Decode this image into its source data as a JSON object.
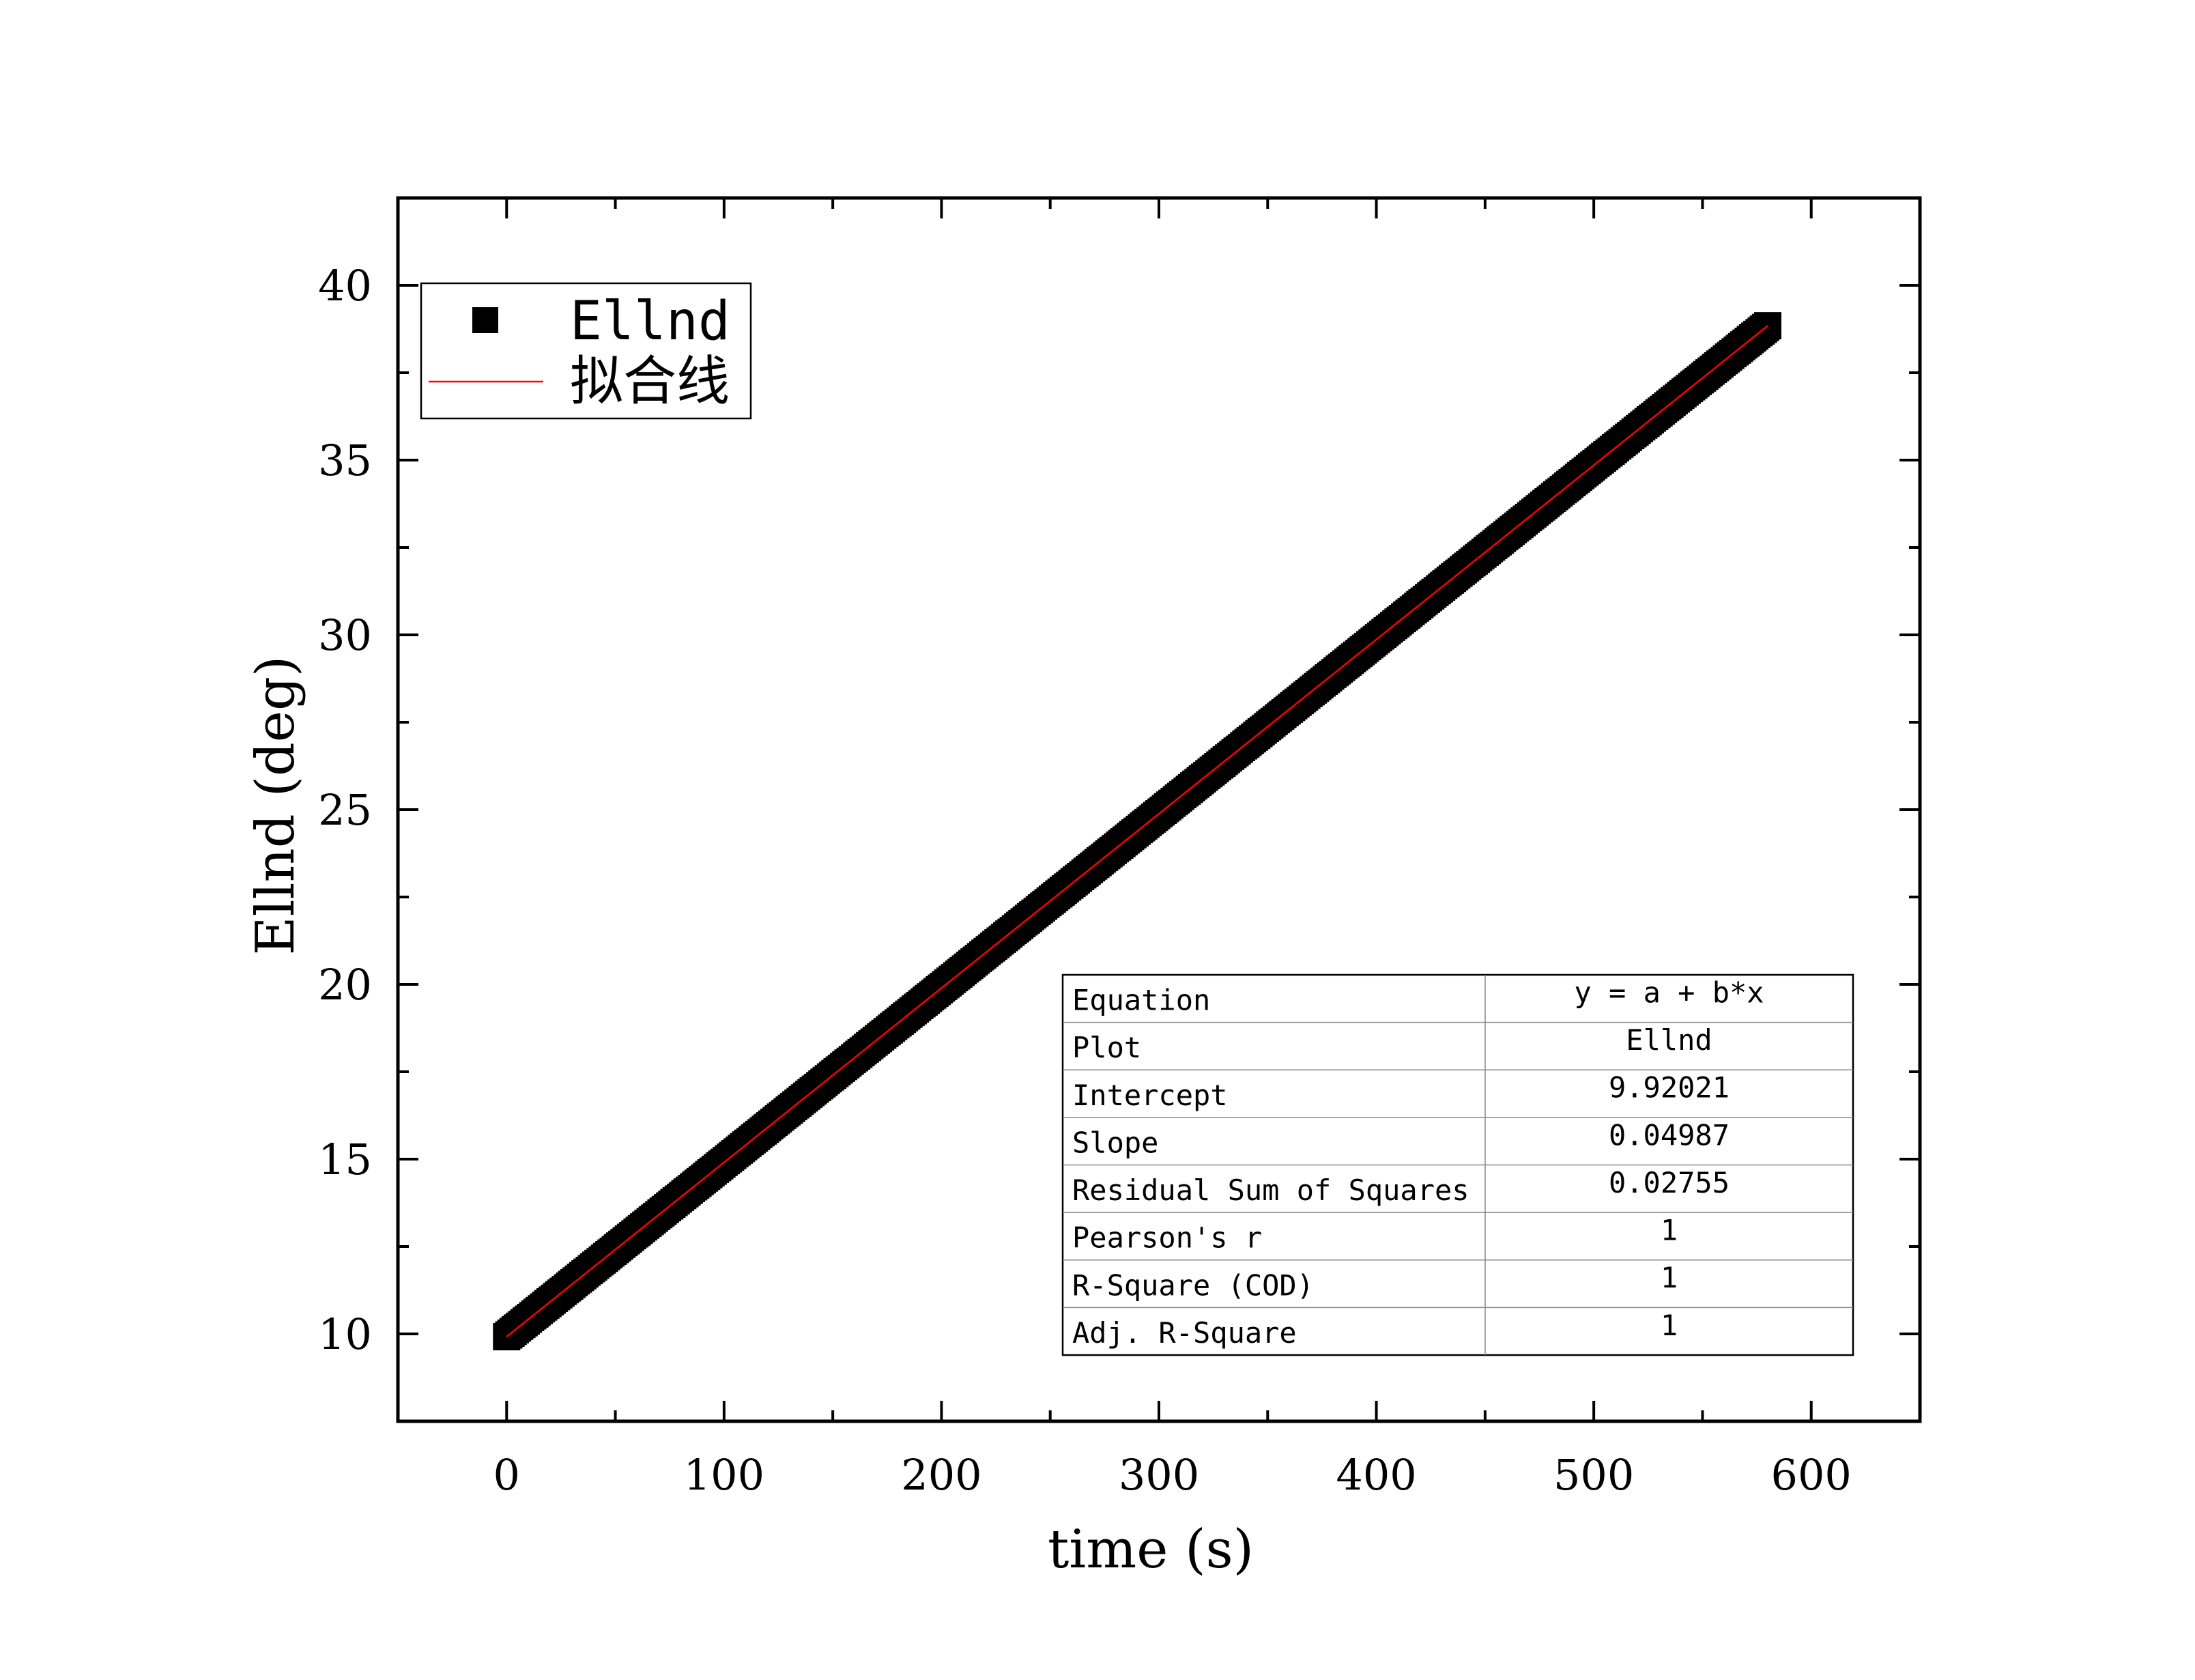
{
  "chart_data": {
    "type": "scatter",
    "xlabel": "time (s)",
    "ylabel": "Ellnd (deg)",
    "xlim": [
      -50,
      650
    ],
    "ylim": [
      7.5,
      42.5
    ],
    "x_ticks": [
      0,
      100,
      200,
      300,
      400,
      500,
      600
    ],
    "y_ticks": [
      10,
      15,
      20,
      25,
      30,
      35,
      40
    ],
    "x_tick_labels": [
      "0",
      "100",
      "200",
      "300",
      "400",
      "500",
      "600"
    ],
    "y_tick_labels": [
      "10",
      "15",
      "20",
      "25",
      "30",
      "35",
      "40"
    ],
    "series": [
      {
        "name": "Ellnd",
        "kind": "markers",
        "marker": "square",
        "color": "#000000",
        "x_range": [
          0,
          580
        ],
        "x_step": 1,
        "equation": "y = 9.92021 + 0.04987*x"
      },
      {
        "name": "拟合线",
        "kind": "line",
        "color": "#ff0000",
        "x": [
          0,
          580
        ],
        "y": [
          9.92021,
          38.84481
        ]
      }
    ],
    "legend": {
      "position": "top-left",
      "entries": [
        "Ellnd",
        "拟合线"
      ]
    },
    "stats_table": {
      "position": "bottom-right",
      "rows": [
        {
          "label": "Equation",
          "value": "y = a + b*x"
        },
        {
          "label": "Plot",
          "value": "Ellnd"
        },
        {
          "label": "Intercept",
          "value": "9.92021"
        },
        {
          "label": "Slope",
          "value": "0.04987"
        },
        {
          "label": "Residual Sum of Squares",
          "value": "0.02755"
        },
        {
          "label": "Pearson's r",
          "value": "1"
        },
        {
          "label": "R-Square (COD)",
          "value": "1"
        },
        {
          "label": "Adj. R-Square",
          "value": "1"
        }
      ]
    },
    "grid": false
  }
}
